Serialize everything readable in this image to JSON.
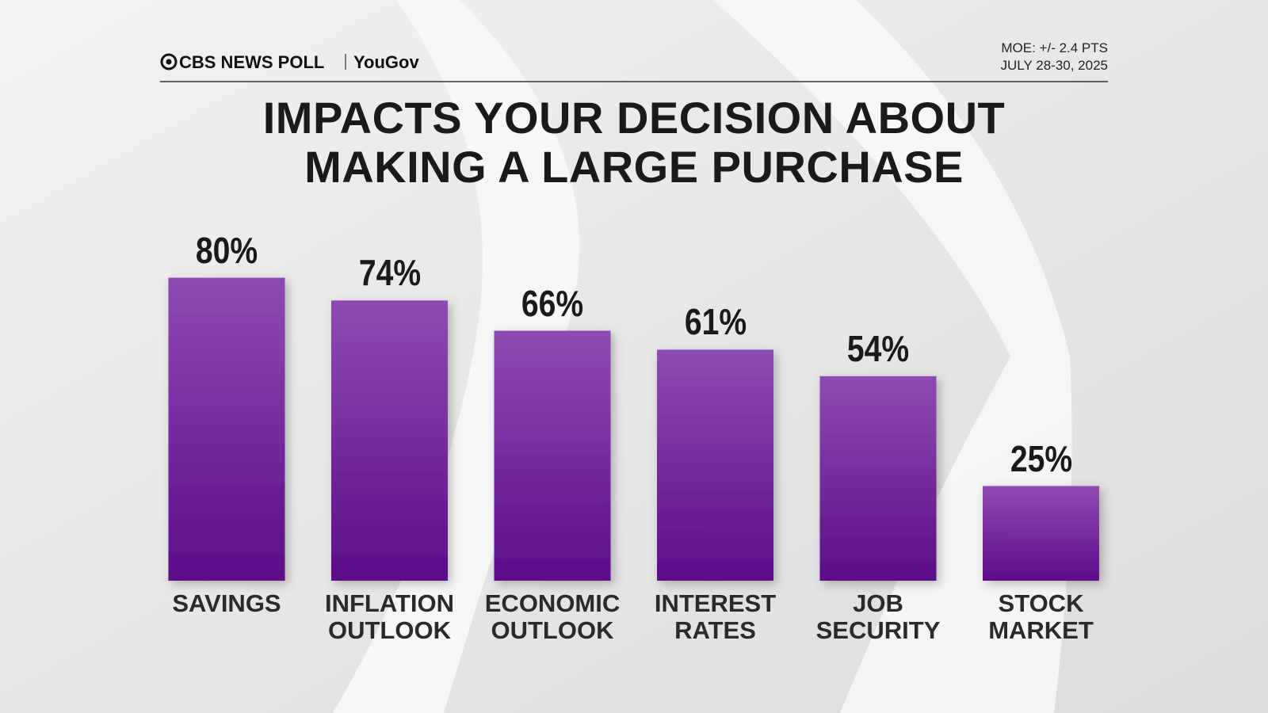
{
  "header": {
    "brand": "CBS NEWS POLL",
    "partner": "YouGov",
    "moe": "MOE: +/- 2.4 PTS",
    "dates": "JULY 28-30, 2025"
  },
  "chart_data": {
    "type": "bar",
    "title": "IMPACTS YOUR DECISION ABOUT MAKING A LARGE PURCHASE",
    "categories": [
      "SAVINGS",
      "INFLATION OUTLOOK",
      "ECONOMIC OUTLOOK",
      "INTEREST RATES",
      "JOB SECURITY",
      "STOCK MARKET"
    ],
    "values": [
      80,
      74,
      66,
      61,
      54,
      25
    ],
    "value_labels": [
      "80%",
      "74%",
      "66%",
      "61%",
      "54%",
      "25%"
    ],
    "color": "#7a2aa6"
  }
}
